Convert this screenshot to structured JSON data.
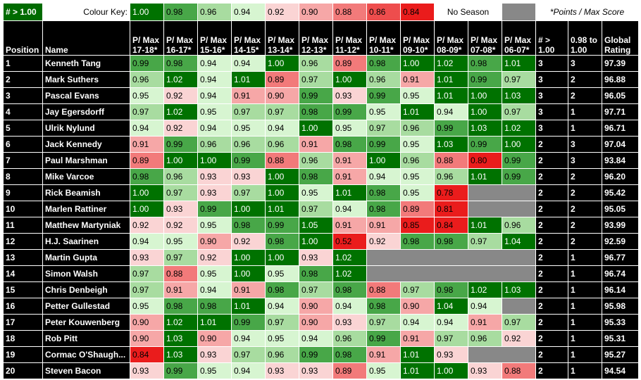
{
  "key": {
    "tag": "# > 1.00",
    "label": "Colour Key:",
    "swatches": [
      {
        "value": "1.00",
        "bg": "#007200",
        "fg": "#ffffff"
      },
      {
        "value": "0.98",
        "bg": "#48a748",
        "fg": "#000000"
      },
      {
        "value": "0.96",
        "bg": "#a8dca0",
        "fg": "#000000"
      },
      {
        "value": "0.94",
        "bg": "#d7f5d1",
        "fg": "#000000"
      },
      {
        "value": "0.92",
        "bg": "#fad4d4",
        "fg": "#000000"
      },
      {
        "value": "0.90",
        "bg": "#f6a7a7",
        "fg": "#000000"
      },
      {
        "value": "0.88",
        "bg": "#f27a7a",
        "fg": "#000000"
      },
      {
        "value": "0.86",
        "bg": "#ee4d4d",
        "fg": "#000000"
      },
      {
        "value": "0.84",
        "bg": "#ea1c1c",
        "fg": "#000000"
      }
    ],
    "no_season": "No Season",
    "note": "*Points / Max Score"
  },
  "headers": {
    "position": "Position",
    "name": "Name",
    "seasons": [
      "P/ Max 17-18*",
      "P/ Max 16-17*",
      "P/ Max 15-16*",
      "P/ Max 14-15*",
      "P/ Max 13-14*",
      "P/ Max 12-13*",
      "P/ Max 11-12*",
      "P/ Max 10-11*",
      "P/ Max 09-10*",
      "P/ Max 08-09*",
      "P/ Max 07-08*",
      "P/ Max 06-07*"
    ],
    "gt": "# > 1.00",
    "range": "0.98 to 1.00",
    "rating": "Global Rating"
  },
  "rows": [
    {
      "pos": "1",
      "name": "Kenneth Tang",
      "s": [
        "0.99",
        "0.98",
        "0.94",
        "0.94",
        "1.00",
        "0.96",
        "0.89",
        "0.98",
        "1.00",
        "1.02",
        "0.98",
        "1.01"
      ],
      "gt": "3",
      "range": "3",
      "rating": "97.39"
    },
    {
      "pos": "2",
      "name": "Mark Suthers",
      "s": [
        "0.96",
        "1.02",
        "0.94",
        "1.01",
        "0.89",
        "0.97",
        "1.00",
        "0.96",
        "0.91",
        "1.01",
        "0.99",
        "0.97"
      ],
      "gt": "3",
      "range": "2",
      "rating": "96.88"
    },
    {
      "pos": "3",
      "name": "Pascal Evans",
      "s": [
        "0.95",
        "0.92",
        "0.94",
        "0.91",
        "0.90",
        "0.99",
        "0.93",
        "0.99",
        "0.95",
        "1.01",
        "1.00",
        "1.03"
      ],
      "gt": "3",
      "range": "2",
      "rating": "96.05"
    },
    {
      "pos": "4",
      "name": "Jay Egersdorff",
      "s": [
        "0.97",
        "1.02",
        "0.95",
        "0.97",
        "0.97",
        "0.98",
        "0.99",
        "0.95",
        "1.01",
        "0.94",
        "1.00",
        "0.97"
      ],
      "gt": "3",
      "range": "1",
      "rating": "97.71"
    },
    {
      "pos": "5",
      "name": "Ulrik Nylund",
      "s": [
        "0.94",
        "0.92",
        "0.94",
        "0.95",
        "0.94",
        "1.00",
        "0.95",
        "0.97",
        "0.96",
        "0.99",
        "1.03",
        "1.02"
      ],
      "gt": "3",
      "range": "1",
      "rating": "96.71"
    },
    {
      "pos": "6",
      "name": "Jack Kennedy",
      "s": [
        "0.91",
        "0.99",
        "0.96",
        "0.96",
        "0.96",
        "0.91",
        "0.98",
        "0.99",
        "0.95",
        "1.03",
        "0.99",
        "1.00"
      ],
      "gt": "2",
      "range": "3",
      "rating": "97.04"
    },
    {
      "pos": "7",
      "name": "Paul Marshman",
      "s": [
        "0.89",
        "1.00",
        "1.00",
        "0.99",
        "0.88",
        "0.96",
        "0.91",
        "1.00",
        "0.96",
        "0.88",
        "0.80",
        "0.99"
      ],
      "gt": "2",
      "range": "3",
      "rating": "93.84"
    },
    {
      "pos": "8",
      "name": "Mike Varcoe",
      "s": [
        "0.98",
        "0.96",
        "0.93",
        "0.93",
        "1.00",
        "0.98",
        "0.91",
        "0.94",
        "0.95",
        "0.96",
        "1.01",
        "0.99"
      ],
      "gt": "2",
      "range": "2",
      "rating": "96.20"
    },
    {
      "pos": "9",
      "name": "Rick Beamish",
      "s": [
        "1.00",
        "0.97",
        "0.93",
        "0.97",
        "1.00",
        "0.95",
        "1.01",
        "0.98",
        "0.95",
        "0.78",
        "",
        ""
      ],
      "gt": "2",
      "range": "2",
      "rating": "95.42"
    },
    {
      "pos": "10",
      "name": "Marlen Rattiner",
      "s": [
        "1.00",
        "0.93",
        "0.99",
        "1.00",
        "1.01",
        "0.97",
        "0.94",
        "0.98",
        "0.89",
        "0.81",
        "",
        ""
      ],
      "gt": "2",
      "range": "2",
      "rating": "95.05"
    },
    {
      "pos": "11",
      "name": "Matthew Martyniak",
      "s": [
        "0.92",
        "0.92",
        "0.95",
        "0.98",
        "0.99",
        "1.05",
        "0.91",
        "0.91",
        "0.85",
        "0.84",
        "1.01",
        "0.96"
      ],
      "gt": "2",
      "range": "2",
      "rating": "93.99"
    },
    {
      "pos": "12",
      "name": "H.J. Saarinen",
      "s": [
        "0.94",
        "0.95",
        "0.90",
        "0.92",
        "0.98",
        "1.00",
        "0.52",
        "0.92",
        "0.98",
        "0.98",
        "0.97",
        "1.04"
      ],
      "gt": "2",
      "range": "2",
      "rating": "92.59"
    },
    {
      "pos": "13",
      "name": "Martin Gupta",
      "s": [
        "0.93",
        "0.97",
        "0.92",
        "1.00",
        "1.00",
        "0.93",
        "1.02",
        "",
        "",
        "",
        "",
        ""
      ],
      "gt": "2",
      "range": "1",
      "rating": "96.77"
    },
    {
      "pos": "14",
      "name": "Simon Walsh",
      "s": [
        "0.97",
        "0.88",
        "0.95",
        "1.00",
        "0.95",
        "0.98",
        "1.02",
        "",
        "",
        "",
        "",
        ""
      ],
      "gt": "2",
      "range": "1",
      "rating": "96.74"
    },
    {
      "pos": "15",
      "name": "Chris Denbeigh",
      "s": [
        "0.97",
        "0.91",
        "0.94",
        "0.91",
        "0.98",
        "0.97",
        "0.98",
        "0.88",
        "0.97",
        "0.98",
        "1.02",
        "1.03"
      ],
      "gt": "2",
      "range": "1",
      "rating": "96.14"
    },
    {
      "pos": "16",
      "name": "Petter Gullestad",
      "s": [
        "0.95",
        "0.98",
        "0.98",
        "1.01",
        "0.94",
        "0.90",
        "0.94",
        "0.98",
        "0.90",
        "1.04",
        "0.94",
        ""
      ],
      "gt": "2",
      "range": "1",
      "rating": "95.98"
    },
    {
      "pos": "17",
      "name": "Peter Kouwenberg",
      "s": [
        "0.90",
        "1.02",
        "1.01",
        "0.99",
        "0.97",
        "0.90",
        "0.93",
        "0.97",
        "0.94",
        "0.94",
        "0.91",
        "0.97"
      ],
      "gt": "2",
      "range": "1",
      "rating": "95.33"
    },
    {
      "pos": "18",
      "name": "Rob Pitt",
      "s": [
        "0.90",
        "1.03",
        "0.90",
        "0.94",
        "0.95",
        "0.94",
        "0.96",
        "0.99",
        "0.91",
        "0.97",
        "0.96",
        "0.92"
      ],
      "gt": "2",
      "range": "1",
      "rating": "95.31"
    },
    {
      "pos": "19",
      "name": "Cormac O'Shaugh...",
      "s": [
        "0.84",
        "1.03",
        "0.93",
        "0.97",
        "0.96",
        "0.99",
        "0.98",
        "0.91",
        "1.01",
        "0.93",
        "",
        ""
      ],
      "gt": "2",
      "range": "1",
      "rating": "95.27"
    },
    {
      "pos": "20",
      "name": "Steven Bacon",
      "s": [
        "0.93",
        "0.99",
        "0.95",
        "0.94",
        "0.93",
        "0.93",
        "0.89",
        "0.95",
        "1.01",
        "1.00",
        "0.93",
        "0.88"
      ],
      "gt": "2",
      "range": "1",
      "rating": "94.54"
    }
  ]
}
